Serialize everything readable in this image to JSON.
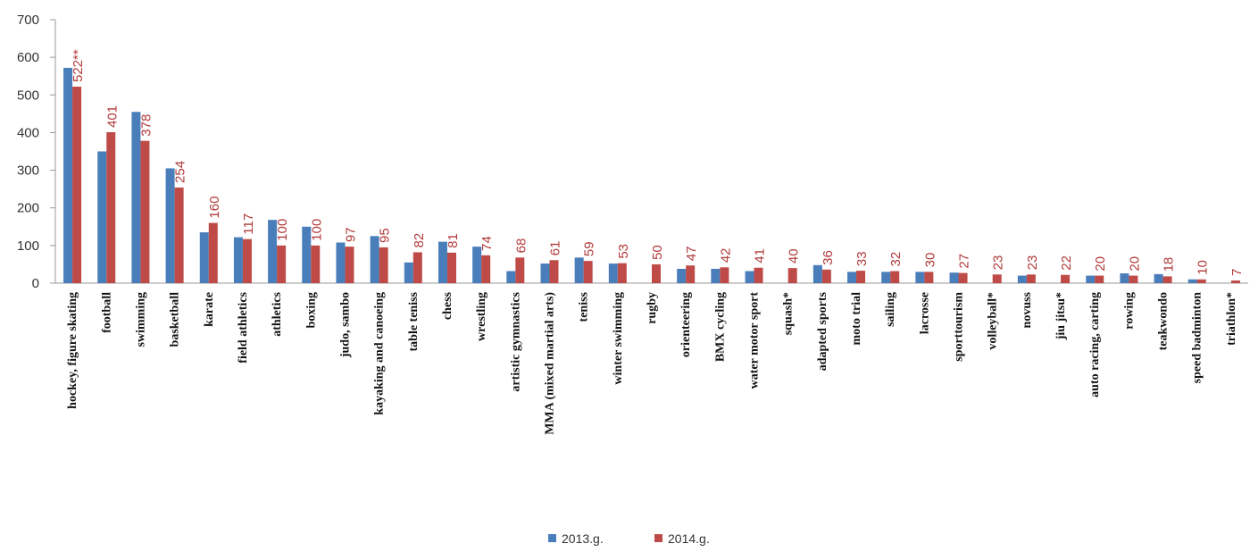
{
  "chart_data": {
    "type": "bar",
    "title": "",
    "xlabel": "",
    "ylabel": "",
    "ylim": [
      0,
      700
    ],
    "yticks": [
      0,
      100,
      200,
      300,
      400,
      500,
      600,
      700
    ],
    "grid": false,
    "legend_position": "bottom",
    "categories": [
      "hockey, figure skating",
      "football",
      "swimming",
      "basketball",
      "karate",
      "field athletics",
      "athletics",
      "boxing",
      "judo, sambo",
      "kayaking and canoeing",
      "table teniss",
      "chess",
      "wrestling",
      "artistic gymnastics",
      "MMA (mixed martial arts)",
      "teniss",
      "winter swimming",
      "rugby",
      "orienteering",
      "BMX cycling",
      "water motor sport",
      "squash*",
      "adapted sports",
      "moto trial",
      "sailing",
      "lacrosse",
      "sporttourism",
      "volleyball*",
      "novuss",
      "jiu jitsu*",
      "auto racing, carting",
      "rowing",
      "teakwondo",
      "speed badminton",
      "triathlon*"
    ],
    "series": [
      {
        "name": "2013.g.",
        "color": "#4a7ebb",
        "values": [
          572,
          350,
          455,
          305,
          135,
          122,
          168,
          150,
          108,
          125,
          55,
          110,
          97,
          32,
          52,
          68,
          52,
          0,
          38,
          38,
          32,
          0,
          48,
          30,
          30,
          30,
          28,
          0,
          20,
          0,
          20,
          26,
          24,
          10,
          0
        ]
      },
      {
        "name": "2014.g.",
        "color": "#be4b48",
        "values": [
          522,
          401,
          378,
          254,
          160,
          117,
          100,
          100,
          97,
          95,
          82,
          81,
          74,
          68,
          61,
          59,
          53,
          50,
          47,
          42,
          41,
          40,
          36,
          33,
          32,
          30,
          27,
          23,
          23,
          22,
          20,
          20,
          18,
          10,
          7
        ]
      }
    ],
    "data_labels": [
      "522**",
      "401",
      "378",
      "254",
      "160",
      "117",
      "100",
      "100",
      "97",
      "95",
      "82",
      "81",
      "74",
      "68",
      "61",
      "59",
      "53",
      "50",
      "47",
      "42",
      "41",
      "40",
      "36",
      "33",
      "32",
      "30",
      "27",
      "23",
      "23",
      "22",
      "20",
      "20",
      "18",
      "10",
      "7"
    ]
  }
}
